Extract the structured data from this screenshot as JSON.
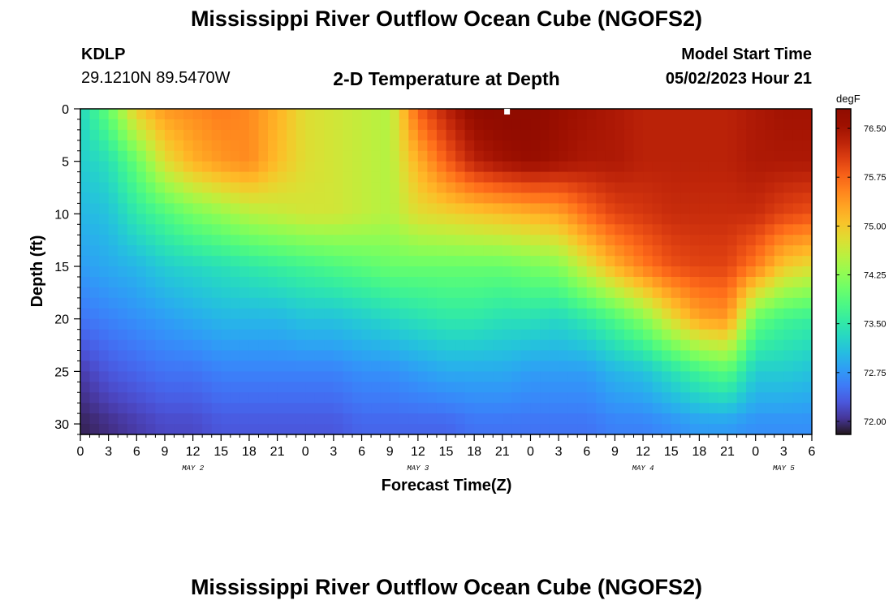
{
  "header": {
    "title": "Mississippi River Outflow Ocean Cube (NGOFS2)",
    "station_id": "KDLP",
    "coordinates": "29.1210N  89.5470W",
    "model_start_label": "Model Start Time",
    "model_start_time": "05/02/2023 Hour 21"
  },
  "footer": {
    "title": "Mississippi River Outflow Ocean Cube (NGOFS2)"
  },
  "chart_data": {
    "type": "heatmap",
    "title": "2-D Temperature at Depth",
    "xlabel": "Forecast Time(Z)",
    "ylabel": "Depth (ft)",
    "x_tick_labels": [
      "0",
      "3",
      "6",
      "9",
      "12",
      "15",
      "18",
      "21",
      "0",
      "3",
      "6",
      "9",
      "12",
      "15",
      "18",
      "21",
      "0",
      "3",
      "6",
      "9",
      "12",
      "15",
      "18",
      "21",
      "0",
      "3",
      "6"
    ],
    "x_day_labels": [
      {
        "label": "MAY 2",
        "at_hour": 12
      },
      {
        "label": "MAY 3",
        "at_hour": 36
      },
      {
        "label": "MAY 4",
        "at_hour": 60
      },
      {
        "label": "MAY 5",
        "at_hour": 75
      }
    ],
    "x_range_hours": [
      0,
      78
    ],
    "y_range_ft": [
      0,
      31
    ],
    "y_inverted": true,
    "y_ticks": [
      0,
      5,
      10,
      15,
      20,
      25,
      30
    ],
    "colorbar": {
      "unit": "degF",
      "range": [
        71.8,
        76.8
      ],
      "tick_values": [
        72.0,
        72.75,
        73.5,
        74.25,
        75.0,
        75.75,
        76.5
      ],
      "tick_labels": [
        "72.00",
        "72.75",
        "73.50",
        "74.25",
        "75.00",
        "75.75",
        "76.50"
      ],
      "colormap": "turbo"
    },
    "model_start_marker_hour": 45.5,
    "depth_levels_ft": [
      0,
      5,
      10,
      15,
      20,
      25,
      30
    ],
    "profile_hours": [
      0,
      3,
      6,
      9,
      12,
      15,
      18,
      21,
      24,
      27,
      30,
      33,
      36,
      39,
      42,
      45,
      48,
      51,
      54,
      57,
      60,
      63,
      66,
      69,
      72,
      75,
      78
    ],
    "temperature_degF": [
      [
        73.3,
        73.2,
        73.0,
        72.8,
        72.5,
        72.1,
        71.9
      ],
      [
        74.0,
        73.4,
        73.1,
        72.9,
        72.6,
        72.3,
        72.0
      ],
      [
        75.0,
        74.0,
        73.5,
        73.0,
        72.7,
        72.4,
        72.1
      ],
      [
        75.4,
        74.8,
        73.8,
        73.2,
        72.8,
        72.5,
        72.2
      ],
      [
        75.5,
        75.2,
        74.1,
        73.3,
        72.9,
        72.5,
        72.2
      ],
      [
        75.6,
        75.4,
        74.3,
        73.4,
        73.0,
        72.6,
        72.3
      ],
      [
        75.5,
        75.5,
        74.5,
        73.5,
        73.0,
        72.6,
        72.3
      ],
      [
        75.2,
        75.1,
        74.6,
        73.6,
        73.0,
        72.6,
        72.3
      ],
      [
        74.8,
        74.8,
        74.7,
        73.7,
        73.1,
        72.6,
        72.3
      ],
      [
        74.7,
        74.7,
        74.7,
        73.8,
        73.1,
        72.6,
        72.3
      ],
      [
        74.6,
        74.6,
        74.6,
        73.9,
        73.2,
        72.7,
        72.4
      ],
      [
        74.5,
        74.5,
        74.5,
        74.0,
        73.3,
        72.7,
        72.4
      ],
      [
        75.8,
        75.2,
        74.8,
        74.0,
        73.4,
        72.8,
        72.4
      ],
      [
        76.3,
        75.8,
        74.9,
        74.0,
        73.5,
        72.9,
        72.4
      ],
      [
        76.7,
        76.3,
        75.0,
        74.0,
        73.5,
        72.9,
        72.5
      ],
      [
        76.8,
        76.5,
        75.1,
        74.0,
        73.4,
        72.9,
        72.5
      ],
      [
        76.8,
        76.6,
        75.2,
        74.1,
        73.4,
        72.8,
        72.5
      ],
      [
        76.6,
        76.5,
        75.3,
        74.2,
        73.3,
        72.8,
        72.5
      ],
      [
        76.5,
        76.4,
        75.7,
        74.7,
        73.5,
        72.8,
        72.5
      ],
      [
        76.4,
        76.4,
        76.0,
        75.2,
        73.8,
        73.0,
        72.6
      ],
      [
        76.3,
        76.3,
        76.1,
        75.6,
        74.2,
        73.1,
        72.6
      ],
      [
        76.3,
        76.3,
        76.2,
        75.9,
        74.8,
        73.4,
        72.7
      ],
      [
        76.3,
        76.3,
        76.2,
        76.0,
        75.3,
        73.7,
        72.8
      ],
      [
        76.3,
        76.3,
        76.2,
        76.0,
        75.4,
        73.9,
        72.8
      ],
      [
        76.4,
        76.4,
        76.2,
        75.6,
        74.0,
        73.2,
        72.7
      ],
      [
        76.5,
        76.4,
        76.0,
        75.0,
        73.7,
        73.2,
        72.7
      ],
      [
        76.5,
        76.4,
        75.9,
        74.8,
        73.6,
        73.1,
        72.7
      ]
    ]
  }
}
